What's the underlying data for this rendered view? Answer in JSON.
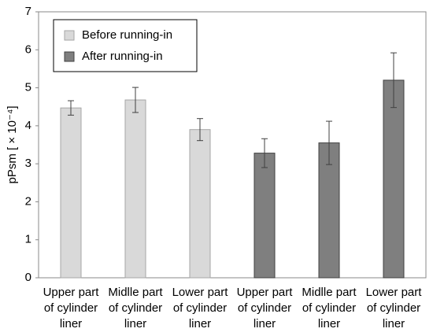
{
  "chart_data": {
    "type": "bar",
    "ylabel": "pPsm [ × 10⁻⁴]",
    "categories": [
      [
        "Upper part",
        "of cylinder",
        "liner"
      ],
      [
        "Midlle part",
        "of cylinder",
        "liner"
      ],
      [
        "Lower part",
        "of cylinder",
        "liner"
      ],
      [
        "Upper part",
        "of cylinder",
        "liner"
      ],
      [
        "Midlle part",
        "of cylinder",
        "liner"
      ],
      [
        "Lower part",
        "of cylinder",
        "liner"
      ]
    ],
    "series": [
      {
        "name": "Before running-in",
        "color": "#d9d9d9",
        "values": [
          4.47,
          4.68,
          3.9,
          null,
          null,
          null
        ],
        "errors": [
          0.19,
          0.33,
          0.29,
          null,
          null,
          null
        ]
      },
      {
        "name": "After running-in",
        "color": "#7f7f7f",
        "values": [
          null,
          null,
          null,
          3.28,
          3.55,
          5.2
        ],
        "errors": [
          null,
          null,
          null,
          0.38,
          0.57,
          0.72
        ]
      }
    ],
    "ylim": [
      0,
      7
    ],
    "yticks": [
      0,
      1,
      2,
      3,
      4,
      5,
      6,
      7
    ],
    "grid": false,
    "legend": "upper left"
  }
}
